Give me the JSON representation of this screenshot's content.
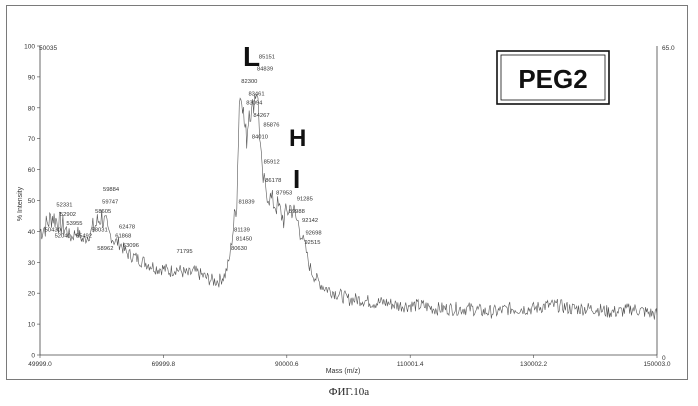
{
  "chart_data": {
    "type": "line",
    "xlabel": "Mass (m/z)",
    "ylabel": "% Intensity",
    "xlim": [
      49999.0,
      150003.0
    ],
    "ylim": [
      0,
      100
    ],
    "x_ticks": [
      "49999.0",
      "69999.8",
      "90000.6",
      "110001.4",
      "130002.2",
      "150003.0"
    ],
    "y_ticks": [
      "0",
      "10",
      "20",
      "30",
      "40",
      "50",
      "60",
      "70",
      "80",
      "90",
      "100"
    ],
    "top_left_value": "50035",
    "right_axis_top": "65.0",
    "right_axis_bottom": "0",
    "box_label": "PEG2",
    "annotations": [
      {
        "text": "L"
      },
      {
        "text": "H"
      },
      {
        "text": "I"
      }
    ],
    "peak_labels": [
      {
        "label": "85151",
        "x": 85151,
        "y": 96
      },
      {
        "label": "84839",
        "x": 84839,
        "y": 92
      },
      {
        "label": "82300",
        "x": 82300,
        "y": 88
      },
      {
        "label": "83461",
        "x": 83461,
        "y": 84
      },
      {
        "label": "83094",
        "x": 83094,
        "y": 81
      },
      {
        "label": "84267",
        "x": 84267,
        "y": 77
      },
      {
        "label": "85876",
        "x": 85876,
        "y": 74
      },
      {
        "label": "84010",
        "x": 84010,
        "y": 70
      },
      {
        "label": "85912",
        "x": 85912,
        "y": 62
      },
      {
        "label": "86178",
        "x": 86178,
        "y": 56
      },
      {
        "label": "87953",
        "x": 87953,
        "y": 52
      },
      {
        "label": "91285",
        "x": 91285,
        "y": 50
      },
      {
        "label": "89988",
        "x": 89988,
        "y": 46
      },
      {
        "label": "92142",
        "x": 92142,
        "y": 43
      },
      {
        "label": "92698",
        "x": 92698,
        "y": 39
      },
      {
        "label": "92515",
        "x": 92515,
        "y": 36
      },
      {
        "label": "81839",
        "x": 81839,
        "y": 49
      },
      {
        "label": "81139",
        "x": 81139,
        "y": 40
      },
      {
        "label": "81450",
        "x": 81450,
        "y": 37
      },
      {
        "label": "80630",
        "x": 80630,
        "y": 34
      },
      {
        "label": "71795",
        "x": 71795,
        "y": 33
      },
      {
        "label": "59884",
        "x": 59884,
        "y": 53
      },
      {
        "label": "59747",
        "x": 59747,
        "y": 49
      },
      {
        "label": "58605",
        "x": 58605,
        "y": 46
      },
      {
        "label": "52331",
        "x": 52331,
        "y": 48
      },
      {
        "label": "52902",
        "x": 52902,
        "y": 45
      },
      {
        "label": "53955",
        "x": 53955,
        "y": 42
      },
      {
        "label": "58031",
        "x": 58031,
        "y": 40
      },
      {
        "label": "62478",
        "x": 62478,
        "y": 41
      },
      {
        "label": "61868",
        "x": 61868,
        "y": 38
      },
      {
        "label": "63096",
        "x": 63096,
        "y": 35
      },
      {
        "label": "55492",
        "x": 55492,
        "y": 38
      },
      {
        "label": "52040",
        "x": 52040,
        "y": 38
      },
      {
        "label": "50430",
        "x": 50430,
        "y": 40
      },
      {
        "label": "58962",
        "x": 58962,
        "y": 34
      }
    ],
    "series": [
      {
        "x": [
          49999,
          51000,
          52000,
          53000,
          54000,
          55000,
          56000,
          57000,
          58000,
          59000,
          60000,
          61000,
          62000,
          63000,
          64000,
          65000,
          66000,
          67000,
          68000,
          69000,
          70000,
          71000,
          72000,
          73000,
          74000,
          75000,
          76000,
          77000,
          78000,
          79000,
          80000,
          80600,
          81100,
          81500,
          81900,
          82300,
          82700,
          83100,
          83500,
          83900,
          84300,
          84800,
          85200,
          85600,
          86000,
          86500,
          87000,
          87500,
          88000,
          88500,
          89000,
          89500,
          90000,
          90500,
          91000,
          91500,
          92000,
          92500,
          93000,
          93500,
          94000,
          95000,
          96000,
          97000,
          98000,
          99000,
          100000,
          102000,
          104000,
          106000,
          108000,
          110000,
          112000,
          114000,
          116000,
          118000,
          120000,
          122000,
          124000,
          126000,
          128000,
          130000,
          132000,
          134000,
          136000,
          138000,
          140000,
          142000,
          144000,
          146000,
          148000,
          150003
        ],
        "y": [
          40,
          42,
          45,
          43,
          41,
          38,
          40,
          37,
          39,
          42,
          45,
          40,
          37,
          36,
          33,
          32,
          31,
          30,
          29,
          28,
          28,
          27,
          28,
          27,
          26,
          27,
          26,
          25,
          24,
          24,
          26,
          30,
          37,
          44,
          50,
          82,
          85,
          75,
          70,
          80,
          78,
          84,
          86,
          72,
          58,
          54,
          52,
          50,
          49,
          48,
          46,
          44,
          46,
          48,
          47,
          44,
          42,
          38,
          35,
          30,
          27,
          24,
          22,
          21,
          20,
          19,
          18,
          18,
          17,
          17,
          16,
          16,
          16,
          15,
          15,
          15,
          15,
          14,
          14,
          15,
          15,
          15,
          16,
          16,
          15,
          15,
          15,
          14,
          14,
          15,
          14,
          13
        ]
      }
    ],
    "grid": false,
    "line_color": "#555555"
  },
  "caption": "ФИГ.10а"
}
